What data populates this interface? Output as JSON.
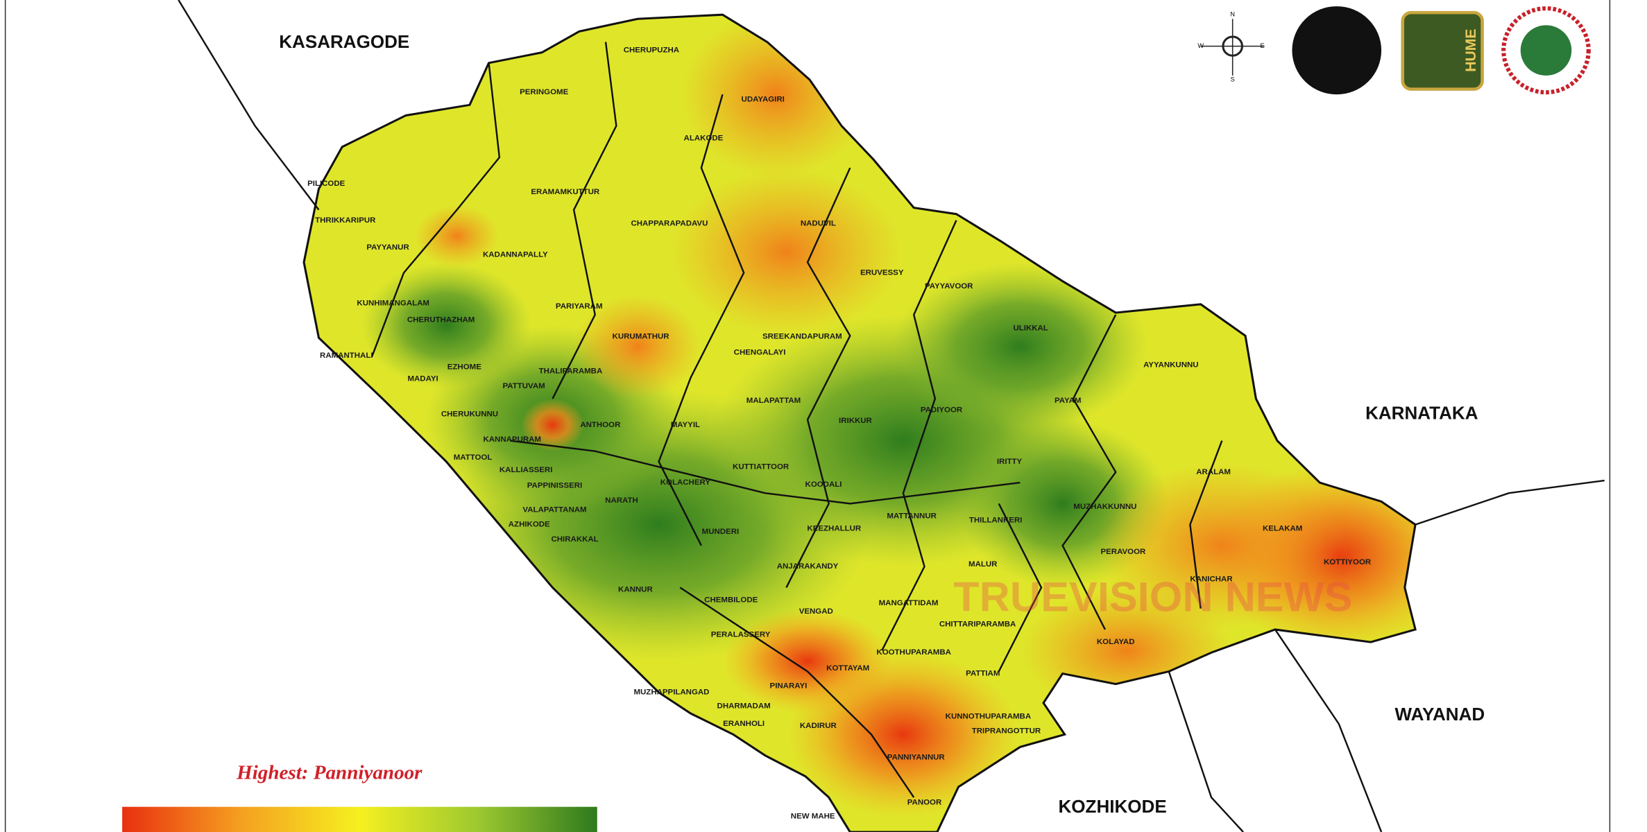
{
  "neighbors": [
    "KASARAGODE",
    "KARNATAKA",
    "WAYANAD",
    "KOZHIKODE"
  ],
  "places": [
    "CHERUPUZHA",
    "PERINGOME",
    "UDAYAGIRI",
    "ALAKODE",
    "PILICODE",
    "ERAMAMKUTTUR",
    "THRIKKARIPUR",
    "CHAPPARAPADAVU",
    "NADUVIL",
    "PAYYANUR",
    "KADANNAPALLY",
    "ERUVESSY",
    "PAYYAVOOR",
    "KUNHIMANGALAM",
    "PARIYARAM",
    "CHERUTHAZHAM",
    "ULIKKAL",
    "KURUMATHUR",
    "SREEKANDAPURAM",
    "CHENGALAYI",
    "RAMANTHALI",
    "EZHOME",
    "THALIPARAMBA",
    "AYYANKUNNU",
    "MADAYI",
    "PATTUVAM",
    "MALAPATTAM",
    "PAYAM",
    "PADIYOOR",
    "CHERUKUNNU",
    "ANTHOOR",
    "MAYYIL",
    "KANNAPURAM",
    "IRIKKUR",
    "KUTTIATTOOR",
    "IRITTY",
    "KOODALI",
    "ARALAM",
    "MATTOOL",
    "KALLIASSERI",
    "PAPPINISSERI",
    "KOLACHERY",
    "NARATH",
    "VALAPATTANAM",
    "AZHIKODE",
    "MUZHAKKUNNU",
    "MATTANNUR",
    "THILLANKERI",
    "KELAKAM",
    "MUNDERI",
    "KEEZHALLUR",
    "CHIRAKKAL",
    "PERAVOOR",
    "KOTTIYOOR",
    "MALUR",
    "KANICHAR",
    "ANJARAKANDY",
    "KANNUR",
    "CHEMBILODE",
    "MANGATTIDAM",
    "VENGAD",
    "CHITTARIPARAMBA",
    "KOLAYAD",
    "PERALASSERY",
    "MUZHAPPILANGAD",
    "PINARAYI",
    "KOTTAYAM",
    "KOOTHUPARAMBA",
    "PATTIAM",
    "DHARMADAM",
    "ERANHOLI",
    "KADIRUR",
    "KUNNOTHUPARAMBA",
    "TRIPRANGOTTUR",
    "PANNIYANNUR",
    "PANOOR",
    "NEW MAHE"
  ],
  "compass": {
    "n": "N",
    "s": "S",
    "e": "E",
    "w": "W"
  },
  "logo_text": "HUME",
  "watermark": "TRUEVISION NEWS",
  "legend_title": "Highest: Panniyanoor"
}
